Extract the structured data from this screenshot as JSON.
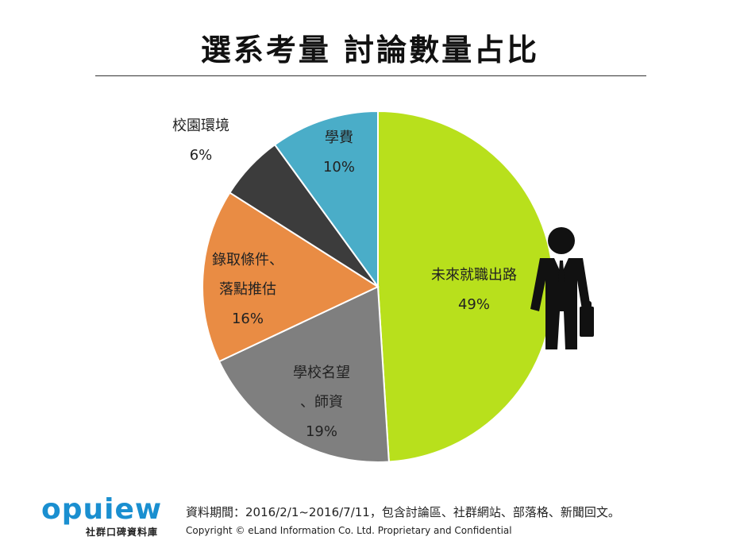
{
  "title": "選系考量  討論數量占比",
  "chart_data": {
    "type": "pie",
    "title": "選系考量  討論數量占比",
    "slices": [
      {
        "name": "未來就職出路",
        "label_lines": [
          "未來就職出路",
          "49%"
        ],
        "value": 49,
        "color": "#b8e01c"
      },
      {
        "name": "學校名望、師資",
        "label_lines": [
          "學校名望",
          "、師資",
          "19%"
        ],
        "value": 19,
        "color": "#7f7f7f"
      },
      {
        "name": "錄取條件、落點推估",
        "label_lines": [
          "錄取條件、",
          "落點推估",
          "16%"
        ],
        "value": 16,
        "color": "#e98c44"
      },
      {
        "name": "校園環境",
        "label_lines": [
          "校園環境",
          "6%"
        ],
        "value": 6,
        "color": "#3c3c3c"
      },
      {
        "name": "學費",
        "label_lines": [
          "學費",
          "10%"
        ],
        "value": 10,
        "color": "#4aadc8"
      }
    ],
    "start": "12 o'clock",
    "direction": "clockwise",
    "legend": "none",
    "icon": "businessman-with-briefcase-icon"
  },
  "footer": {
    "logo_word": "opuiew",
    "logo_sub": "社群口碑資料庫",
    "source": "資料期間：2016/2/1~2016/7/11，包含討論區、社群網站、部落格、新聞回文。",
    "copyright": "Copyright © eLand Information Co. Ltd. Proprietary and Confidential"
  }
}
